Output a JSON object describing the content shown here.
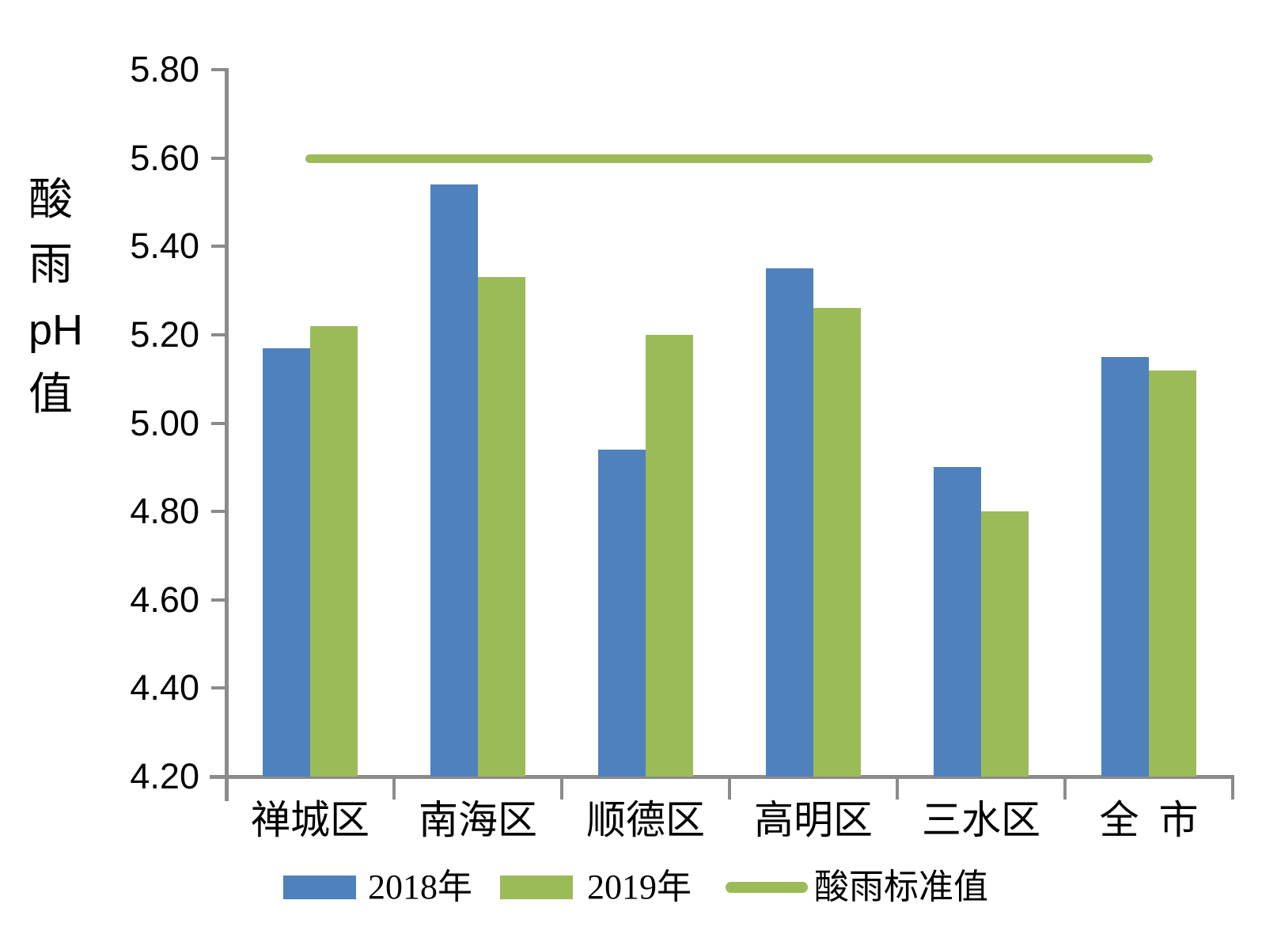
{
  "chart_data": {
    "type": "bar",
    "title": "",
    "ylabel_lines": [
      "酸",
      "雨",
      "pH",
      "值"
    ],
    "categories": [
      "禅城区",
      "南海区",
      "顺德区",
      "高明区",
      "三水区",
      "全  市"
    ],
    "series": [
      {
        "name": "2018年",
        "color": "#4F81BD",
        "values": [
          5.17,
          5.54,
          4.94,
          5.35,
          4.9,
          5.15
        ]
      },
      {
        "name": "2019年",
        "color": "#9BBB59",
        "values": [
          5.22,
          5.33,
          5.2,
          5.26,
          4.8,
          5.12
        ]
      }
    ],
    "reference_line": {
      "label": "酸雨标准值",
      "value": 5.6,
      "color": "#9BBB59"
    },
    "ylim": [
      4.2,
      5.8
    ],
    "ytick_step": 0.2,
    "yticks": [
      "5.80",
      "5.60",
      "5.40",
      "5.20",
      "5.00",
      "4.80",
      "4.60",
      "4.40",
      "4.20"
    ],
    "xlabel": "",
    "ylabel": "酸雨pH值",
    "grid": false,
    "legend_position": "bottom"
  },
  "colors": {
    "axis": "#8B8B8B",
    "bar_2018": "#4F81BD",
    "bar_2019": "#9BBB59",
    "reference": "#9BBB59",
    "text": "#000000",
    "background": "#FFFFFF"
  }
}
